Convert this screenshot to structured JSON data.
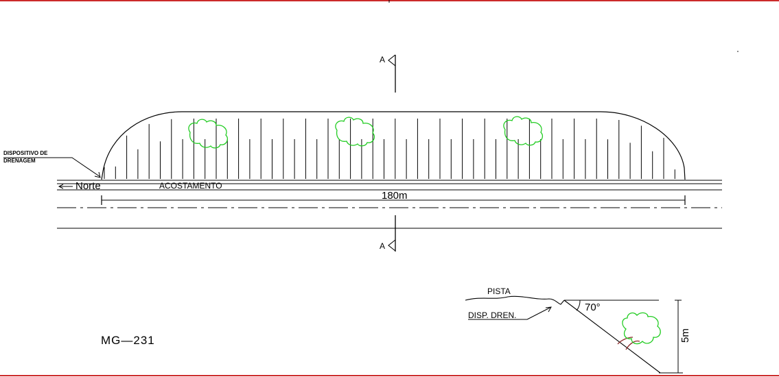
{
  "drawing": {
    "section_marker_label": "A",
    "drainage_label_line1": "DISPOSITIVO DE",
    "drainage_label_line2": "DRENAGEM",
    "north_label": "Norte",
    "shoulder_label": "ACOSTAMENTO",
    "length_dimension": "180m",
    "road_id": "MG—231",
    "section": {
      "pista_label": "PISTA",
      "drain_label": "DISP. DREN.",
      "angle_label": "70°",
      "height_label": "5m"
    }
  },
  "colors": {
    "border": "#cc2a2a",
    "lines": "#000000",
    "trees": "#22cc22",
    "tree_trunk": "#8b2a2a"
  }
}
